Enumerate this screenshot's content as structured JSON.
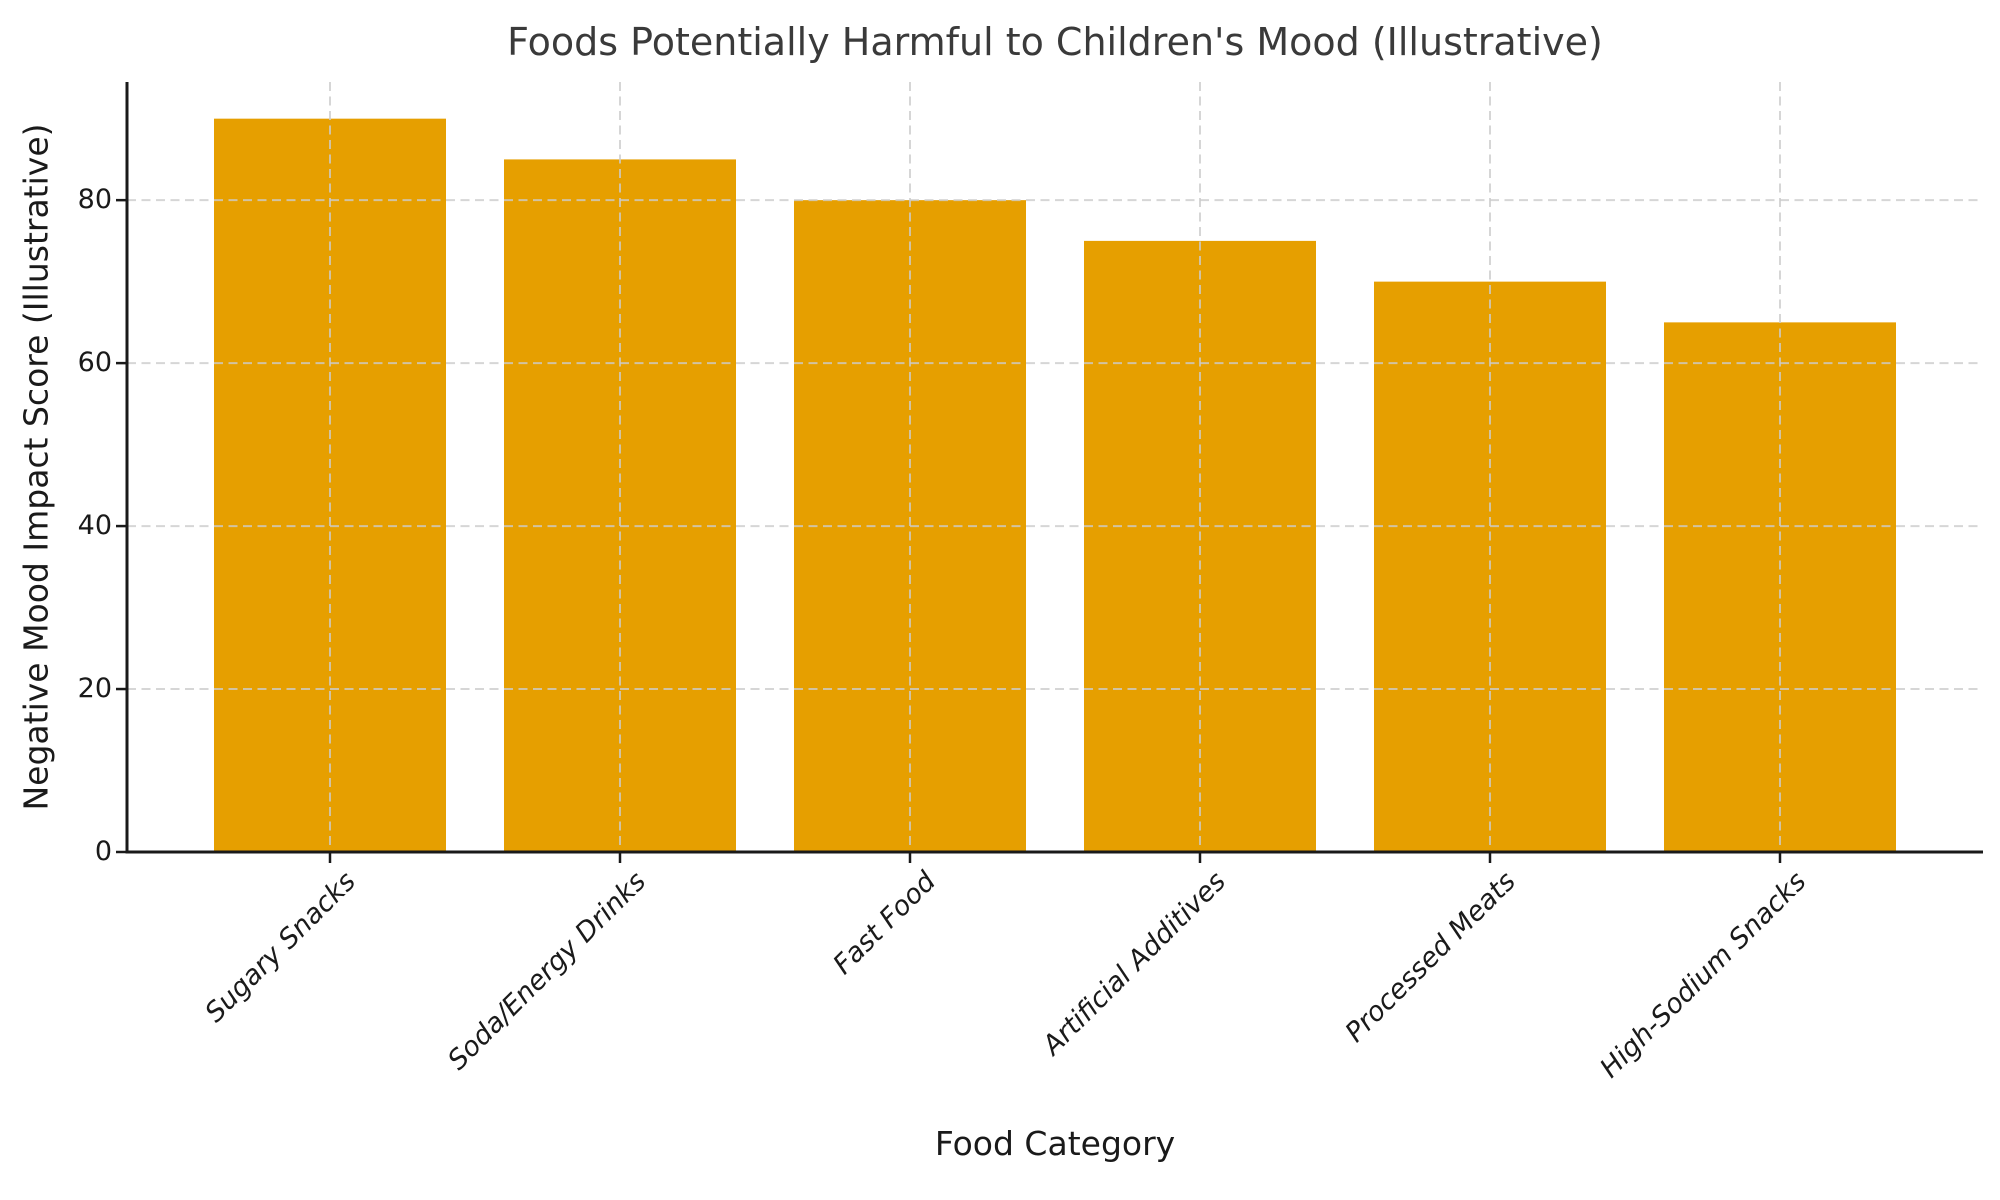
{
  "chart_data": {
    "type": "bar",
    "title": "Foods Potentially Harmful to Children's Mood (Illustrative)",
    "xlabel": "Food Category",
    "ylabel": "Negative Mood Impact Score (Illustrative)",
    "categories": [
      "Sugary Snacks",
      "Soda/Energy Drinks",
      "Fast Food",
      "Artificial Additives",
      "Processed Meats",
      "High-Sodium Snacks"
    ],
    "values": [
      90,
      85,
      80,
      75,
      70,
      65
    ],
    "yticks": [
      0,
      20,
      40,
      60,
      80
    ],
    "ylim": [
      0,
      94.5
    ],
    "bar_color": "#E69F00",
    "grid": "dashed, horizontal and vertical, drawn over bars",
    "grid_color": "#cccccc",
    "axis_color": "#1a1a1a",
    "tick_label_color": "#1a1a1a",
    "title_color": "#3a3a3a",
    "legend_position": "none",
    "x_tick_label_style": "italic, rotated 45 degrees"
  }
}
